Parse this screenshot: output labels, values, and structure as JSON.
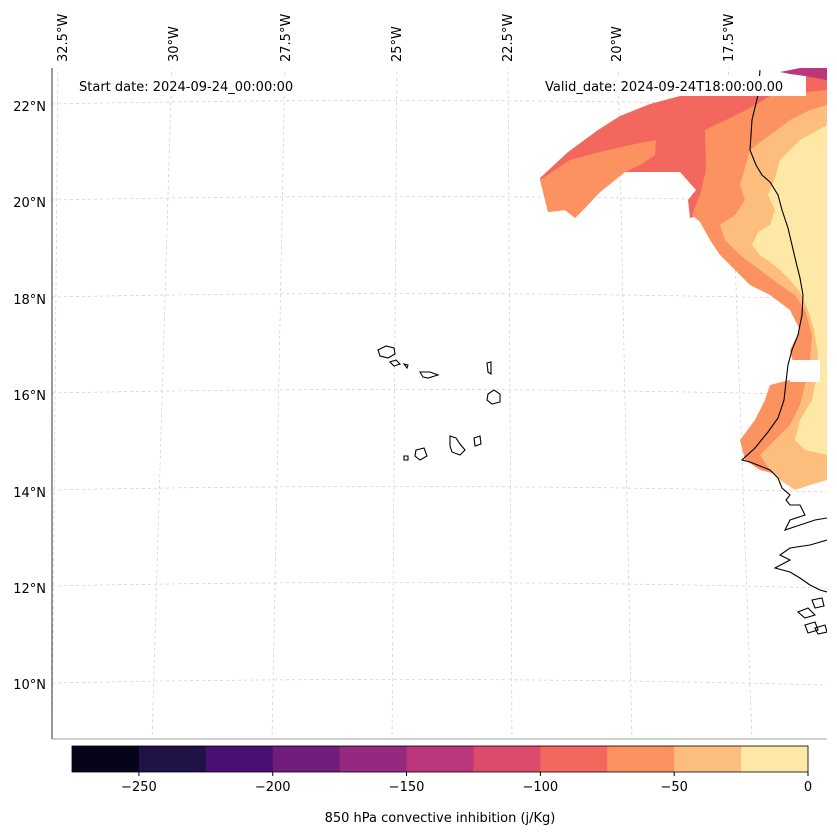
{
  "map": {
    "start_date_text": "Start date: 2024-09-24_00:00:00",
    "valid_date_text": "Valid_date: 2024-09-24T18:00:00.00",
    "longitude_labels": [
      "32.5°W",
      "30°W",
      "27.5°W",
      "25°W",
      "22.5°W",
      "20°W",
      "17.5°W"
    ],
    "latitude_labels": [
      "22°N",
      "20°N",
      "18°N",
      "16°N",
      "14°N",
      "12°N",
      "10°N"
    ],
    "colorbar": {
      "label": "850 hPa convective inhibition (j/Kg)",
      "tick_labels": [
        "−250",
        "−200",
        "−150",
        "−100",
        "−50",
        "0"
      ],
      "range": [
        -275,
        0
      ],
      "colors": [
        "#050418",
        "#201247",
        "#4a0f73",
        "#721d7e",
        "#942a80",
        "#b9377a",
        "#dc4a6c",
        "#f3675f",
        "#fc925f",
        "#fdbd7c",
        "#fde8a6"
      ]
    },
    "colors": {
      "coastline": "#000000",
      "gridline": "#cccccc",
      "frame": "#000000"
    }
  }
}
